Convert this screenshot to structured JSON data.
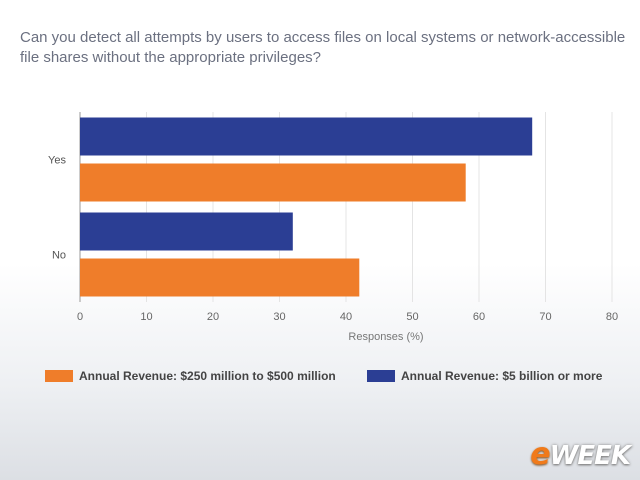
{
  "question": "Can you detect all attempts by users to access files on local systems or network-accessible file shares without the appropriate privileges?",
  "brand": {
    "prefix": "e",
    "rest": "WEEK"
  },
  "colors": {
    "orange": "#ef7d2a",
    "navy": "#2b3e94",
    "grid": "#e4e4e4",
    "axis": "#999999"
  },
  "chart_data": {
    "type": "bar",
    "orientation": "horizontal",
    "categories": [
      "Yes",
      "No"
    ],
    "series": [
      {
        "name": "Annual Revenue: $5 billion or more",
        "color": "#2b3e94",
        "values": [
          68,
          32
        ]
      },
      {
        "name": "Annual Revenue: $250 million to $500 million",
        "color": "#ef7d2a",
        "values": [
          58,
          42
        ]
      }
    ],
    "xlabel": "Responses (%)",
    "ylabel": "",
    "xlim": [
      0,
      80
    ],
    "xticks": [
      0,
      10,
      20,
      30,
      40,
      50,
      60,
      70,
      80
    ],
    "grid": true,
    "legend_placement": "bottom",
    "legend_order": [
      1,
      0
    ]
  }
}
